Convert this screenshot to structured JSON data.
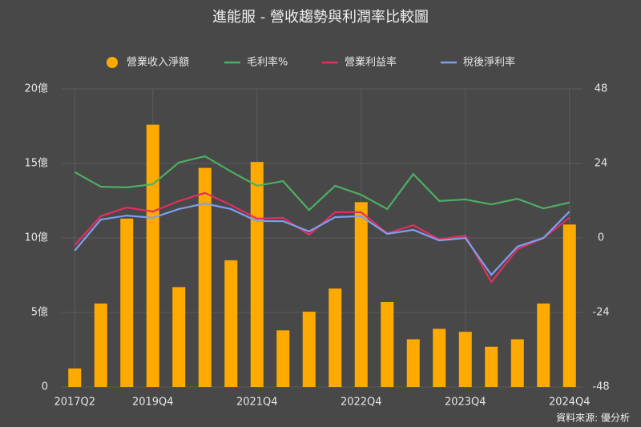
{
  "chart_data": {
    "type": "bar_line",
    "title": "進能服 - 營收趨勢與利潤率比較圖",
    "source": "資料來源: 優分析",
    "categories": [
      "2017Q2",
      null,
      null,
      "2019Q4",
      null,
      null,
      null,
      "2021Q4",
      null,
      null,
      null,
      "2022Q4",
      null,
      null,
      null,
      "2023Q4",
      null,
      null,
      null,
      "2024Q4"
    ],
    "ylim": [
      0,
      20
    ],
    "yticks": [
      0,
      {
        "value": 5,
        "label": "5億"
      },
      {
        "value": 10,
        "label": "10億"
      },
      {
        "value": 15,
        "label": "15億"
      },
      {
        "value": 20,
        "label": "20億"
      }
    ],
    "y2lim": [
      -48,
      48
    ],
    "y2ticks": [
      -48,
      -24,
      0,
      24,
      48
    ],
    "grid": true,
    "series": [
      {
        "name": "營業收入淨額",
        "color": "#ffaa00",
        "kind": "bar",
        "axis": "y",
        "values": [
          1.24,
          5.6,
          11.3,
          17.6,
          6.7,
          14.7,
          8.5,
          15.1,
          3.8,
          5.05,
          6.6,
          12.4,
          5.7,
          3.2,
          3.9,
          3.7,
          2.7,
          3.2,
          5.6,
          10.9
        ]
      },
      {
        "name": "毛利率%",
        "color": "#4caf63",
        "kind": "line",
        "axis": "y2",
        "values": [
          21.2,
          16.5,
          16.3,
          17.3,
          24.3,
          26.3,
          21.4,
          16.8,
          18.3,
          9.0,
          16.8,
          13.9,
          9.3,
          20.6,
          11.9,
          12.4,
          10.8,
          12.6,
          9.5,
          11.4
        ]
      },
      {
        "name": "營業利益率",
        "color": "#e0305f",
        "kind": "line",
        "axis": "y2",
        "values": [
          -2.3,
          7.0,
          9.8,
          8.5,
          11.9,
          14.5,
          10.6,
          6.2,
          6.5,
          1.0,
          8.3,
          8.3,
          1.5,
          4.1,
          -0.5,
          0.8,
          -14.2,
          -3.6,
          0,
          6.5
        ]
      },
      {
        "name": "稅後淨利率",
        "color": "#7f9ef0",
        "kind": "line",
        "axis": "y2",
        "values": [
          -4.1,
          5.9,
          7.2,
          6.5,
          9.3,
          11.1,
          9.3,
          5.4,
          5.4,
          2.1,
          6.7,
          7.0,
          1.3,
          2.6,
          -0.8,
          0,
          -11.9,
          -2.8,
          0,
          8.5
        ]
      }
    ]
  }
}
